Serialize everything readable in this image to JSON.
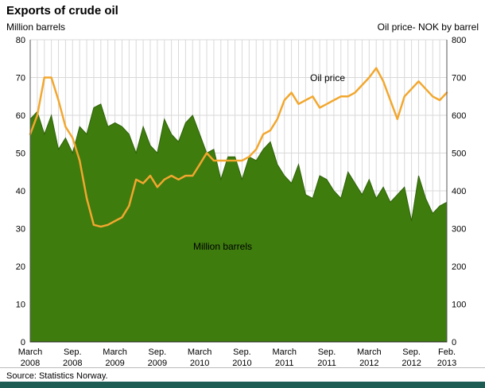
{
  "title": "Exports of crude oil",
  "left_axis_label": "Million barrels",
  "right_axis_label": "Oil price- NOK by barrel",
  "annotations": {
    "oil_price": "Oil price",
    "million_barrels": "Million barrels"
  },
  "source": "Source: Statistics Norway.",
  "colors": {
    "area_fill": "#3e7c0e",
    "area_stroke": "#2f6307",
    "line": "#f2a72e",
    "grid": "#d9d9d9",
    "axis": "#555555",
    "footer_bar": "#1d5c53",
    "text": "#000000"
  },
  "chart_data": {
    "type": "area+line",
    "start_month": "March 2008",
    "end_month": "Feb. 2013",
    "left_ylim": [
      0,
      80
    ],
    "right_ylim": [
      0,
      800
    ],
    "left_yticks": [
      0,
      10,
      20,
      30,
      40,
      50,
      60,
      70,
      80
    ],
    "right_yticks": [
      0,
      100,
      200,
      300,
      400,
      500,
      600,
      700,
      800
    ],
    "x_ticks": [
      {
        "pos": 0,
        "line1": "March",
        "line2": "2008"
      },
      {
        "pos": 6,
        "line1": "Sep.",
        "line2": "2008"
      },
      {
        "pos": 12,
        "line1": "March",
        "line2": "2009"
      },
      {
        "pos": 18,
        "line1": "Sep.",
        "line2": "2009"
      },
      {
        "pos": 24,
        "line1": "March",
        "line2": "2010"
      },
      {
        "pos": 30,
        "line1": "Sep.",
        "line2": "2010"
      },
      {
        "pos": 36,
        "line1": "March",
        "line2": "2011"
      },
      {
        "pos": 42,
        "line1": "Sep.",
        "line2": "2011"
      },
      {
        "pos": 48,
        "line1": "March",
        "line2": "2012"
      },
      {
        "pos": 54,
        "line1": "Sep.",
        "line2": "2012"
      },
      {
        "pos": 59,
        "line1": "Feb.",
        "line2": "2013"
      }
    ],
    "series": [
      {
        "name": "Million barrels",
        "axis": "left",
        "type": "area",
        "values": [
          59,
          61,
          55,
          60,
          51,
          54,
          50,
          57,
          55,
          62,
          63,
          57,
          58,
          57,
          55,
          50,
          57,
          52,
          50,
          59,
          55,
          53,
          58,
          60,
          55,
          50,
          51,
          43,
          49,
          49,
          43,
          49,
          48,
          51,
          53,
          47,
          44,
          42,
          47,
          39,
          38,
          44,
          43,
          40,
          38,
          45,
          42,
          39,
          43,
          38,
          41,
          37,
          39,
          41,
          32,
          44,
          38,
          34,
          36,
          37
        ]
      },
      {
        "name": "Oil price",
        "axis": "right",
        "type": "line",
        "values": [
          550,
          600,
          700,
          700,
          640,
          570,
          540,
          480,
          380,
          310,
          305,
          310,
          320,
          330,
          360,
          430,
          420,
          440,
          410,
          430,
          440,
          430,
          440,
          440,
          470,
          500,
          480,
          480,
          480,
          480,
          480,
          490,
          510,
          550,
          560,
          590,
          640,
          660,
          630,
          640,
          650,
          620,
          630,
          640,
          650,
          650,
          660,
          680,
          700,
          725,
          690,
          640,
          590,
          650,
          670,
          690,
          670,
          650,
          640,
          660
        ]
      }
    ]
  }
}
